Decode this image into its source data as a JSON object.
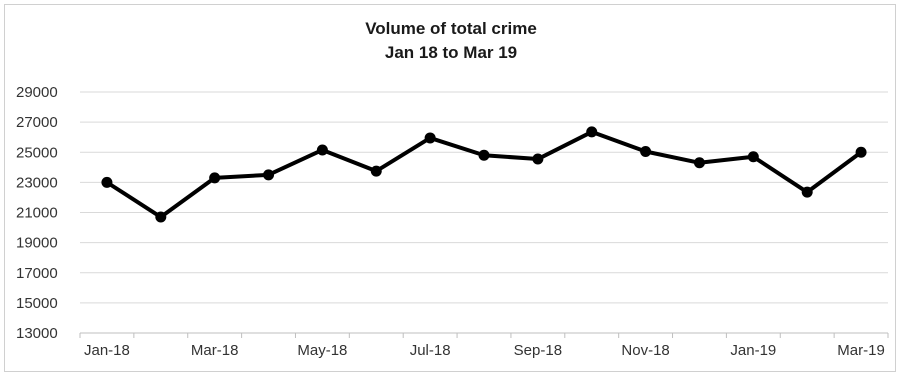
{
  "chart_data": {
    "type": "line",
    "title": "Volume of total crime",
    "subtitle": "Jan 18 to Mar 19",
    "x": [
      "Jan-18",
      "Feb-18",
      "Mar-18",
      "Apr-18",
      "May-18",
      "Jun-18",
      "Jul-18",
      "Aug-18",
      "Sep-18",
      "Oct-18",
      "Nov-18",
      "Dec-18",
      "Jan-19",
      "Feb-19",
      "Mar-19"
    ],
    "x_tick_labels": [
      "Jan-18",
      "Mar-18",
      "May-18",
      "Jul-18",
      "Sep-18",
      "Nov-18",
      "Jan-19",
      "Mar-19"
    ],
    "series": [
      {
        "values": [
          23000,
          20700,
          23300,
          23500,
          25150,
          23750,
          25950,
          24800,
          24550,
          26350,
          25050,
          24300,
          24700,
          22350,
          25000
        ]
      }
    ],
    "y_ticks": [
      13000,
      15000,
      17000,
      19000,
      21000,
      23000,
      25000,
      27000,
      29000
    ],
    "ylim": [
      13000,
      29000
    ],
    "xlabel": "",
    "ylabel": "",
    "grid": true,
    "legend": "none",
    "colors": {
      "line": "#000000",
      "grid": "#d9d9d9",
      "axis": "#bfbfbf"
    }
  }
}
